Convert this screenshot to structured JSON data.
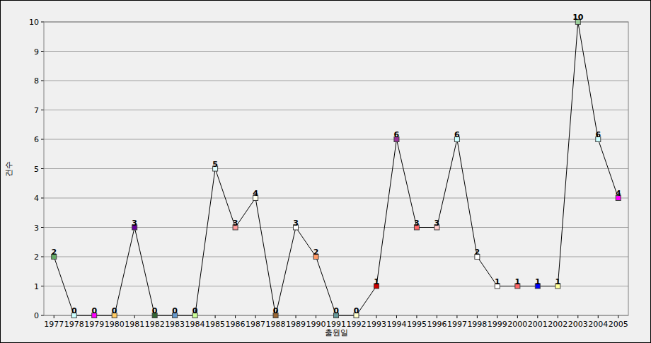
{
  "chart_data": {
    "type": "line",
    "x_label": "출원일",
    "y_label": "건수",
    "categories": [
      "1977",
      "1978",
      "1979",
      "1980",
      "1981",
      "1982",
      "1983",
      "1984",
      "1985",
      "1986",
      "1987",
      "1988",
      "1989",
      "1990",
      "1991",
      "1992",
      "1993",
      "1994",
      "1995",
      "1996",
      "1997",
      "1998",
      "1999",
      "2000",
      "2001",
      "2002",
      "2003",
      "2004",
      "2005"
    ],
    "values": [
      2,
      0,
      0,
      0,
      3,
      0,
      0,
      0,
      5,
      3,
      4,
      0,
      3,
      2,
      0,
      0,
      1,
      6,
      3,
      3,
      6,
      2,
      1,
      1,
      1,
      1,
      10,
      6,
      4
    ],
    "color": "#000000",
    "colors": [
      "#66aa66",
      "#ccffff",
      "#ff00ff",
      "#ffcc66",
      "#660099",
      "#336633",
      "#6699cc",
      "#ccff99",
      "#e0ffff",
      "#ff9999",
      "#ffffee",
      "#996633",
      "#ffffff",
      "#ff9966",
      "#669999",
      "#ffffcc",
      "#cc0000",
      "#993399",
      "#ff6666",
      "#ffcccc",
      "#ccffff",
      "#ffffff",
      "#ffffff",
      "#ff6666",
      "#0000ff",
      "#ffff99",
      "#99cc99",
      "#ccffff",
      "#ff00ff"
    ],
    "marker": "square",
    "ylim": [
      0,
      10
    ],
    "yticks": [
      0,
      1,
      2,
      3,
      4,
      5,
      6,
      7,
      8,
      9,
      10
    ],
    "grid": true,
    "data_labels": true
  }
}
